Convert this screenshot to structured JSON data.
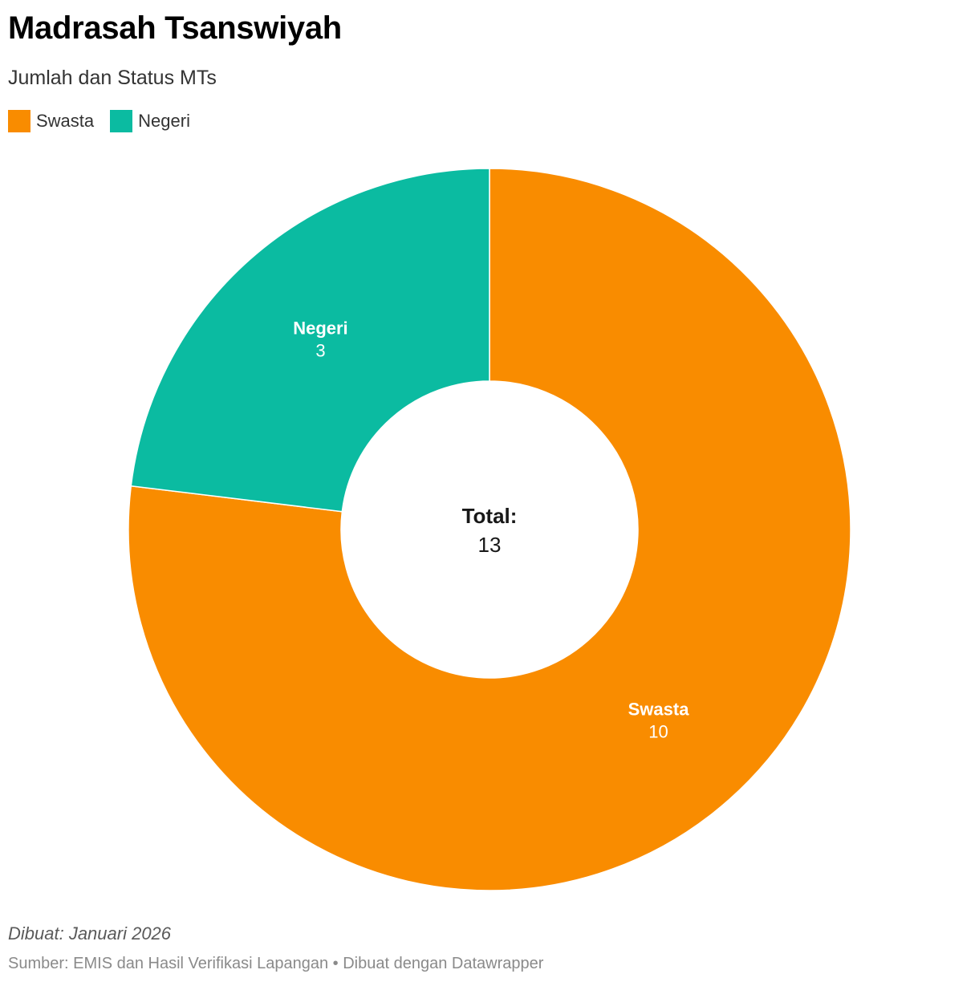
{
  "header": {
    "title": "Madrasah Tsanswiyah",
    "subtitle": "Jumlah dan Status MTs"
  },
  "legend": [
    {
      "label": "Swasta",
      "color": "#f98c00"
    },
    {
      "label": "Negeri",
      "color": "#0bbba1"
    }
  ],
  "center": {
    "label": "Total:",
    "value": "13"
  },
  "footer": {
    "date": "Dibuat: Januari 2026",
    "source": "Sumber: EMIS dan Hasil Verifikasi Lapangan • Dibuat dengan Datawrapper"
  },
  "chart_data": {
    "type": "pie",
    "variant": "donut",
    "title": "Madrasah Tsanswiyah",
    "subtitle": "Jumlah dan Status MTs",
    "legend_position": "top-left",
    "categories": [
      "Swasta",
      "Negeri"
    ],
    "values": [
      10,
      3
    ],
    "colors": [
      "#f98c00",
      "#0bbba1"
    ],
    "total": 13
  }
}
